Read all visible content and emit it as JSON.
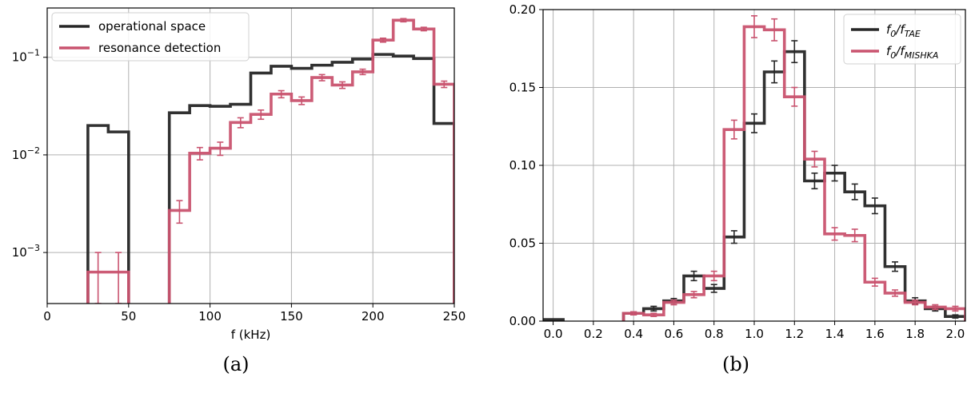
{
  "colors": {
    "black_series": "#262626",
    "pink_series": "#c9536f",
    "grid": "#b0b0b0"
  },
  "chart_data": [
    {
      "type": "histogram",
      "panel_label": "(a)",
      "xlabel": "f (kHz)",
      "ylabel": "",
      "xlim": [
        0,
        250
      ],
      "ylim": [
        0.0003,
        0.32
      ],
      "yscale": "log",
      "xticks": [
        0,
        50,
        100,
        150,
        200,
        250
      ],
      "yticks": [
        0.001,
        0.01,
        0.1
      ],
      "ytick_labels": [
        {
          "base": "10",
          "exp": "−3"
        },
        {
          "base": "10",
          "exp": "−2"
        },
        {
          "base": "10",
          "exp": "−1"
        }
      ],
      "grid": true,
      "legend_position": "top-left",
      "bin_edges": [
        0,
        12.5,
        25,
        37.5,
        50,
        62.5,
        75,
        87.5,
        100,
        112.5,
        125,
        137.5,
        150,
        162.5,
        175,
        187.5,
        200,
        212.5,
        225,
        237.5,
        250
      ],
      "series": [
        {
          "name": "operational space",
          "color": "#262626",
          "values": [
            0,
            0,
            0.02,
            0.0172,
            0,
            0,
            0.027,
            0.032,
            0.0315,
            0.033,
            0.069,
            0.081,
            0.077,
            0.083,
            0.089,
            0.096,
            0.107,
            0.103,
            0.097,
            0.021
          ],
          "errors": [
            0,
            0,
            0,
            0,
            0,
            0,
            0,
            0,
            0,
            0,
            0,
            0,
            0,
            0,
            0,
            0,
            0,
            0,
            0,
            0
          ]
        },
        {
          "name": "resonance detection",
          "color": "#c9536f",
          "values": [
            0,
            0,
            0.00063,
            0.00063,
            0,
            0,
            0.0027,
            0.0104,
            0.0117,
            0.0215,
            0.026,
            0.042,
            0.036,
            0.062,
            0.052,
            0.071,
            0.15,
            0.24,
            0.195,
            0.053
          ],
          "errors": [
            0,
            0,
            0.00037,
            0.00037,
            0,
            0,
            0.0007,
            0.0015,
            0.0018,
            0.0025,
            0.0028,
            0.0035,
            0.0032,
            0.0045,
            0.004,
            0.0045,
            0.007,
            0.009,
            0.008,
            0.004
          ]
        }
      ]
    },
    {
      "type": "histogram",
      "panel_label": "(b)",
      "xlabel": "",
      "ylabel": "",
      "xlim": [
        -0.05,
        2.05
      ],
      "ylim": [
        0,
        0.2
      ],
      "yscale": "linear",
      "xticks": [
        0.0,
        0.2,
        0.4,
        0.6,
        0.8,
        1.0,
        1.2,
        1.4,
        1.6,
        1.8,
        2.0
      ],
      "xtick_labels": [
        "0.0",
        "0.2",
        "0.4",
        "0.6",
        "0.8",
        "1.0",
        "1.2",
        "1.4",
        "1.6",
        "1.8",
        "2.0"
      ],
      "yticks": [
        0,
        0.05,
        0.1,
        0.15,
        0.2
      ],
      "ytick_labels": [
        "0.00",
        "0.05",
        "0.10",
        "0.15",
        "0.20"
      ],
      "grid": true,
      "legend_position": "top-right",
      "bin_edges": [
        -0.05,
        0.05,
        0.15,
        0.25,
        0.35,
        0.45,
        0.55,
        0.65,
        0.75,
        0.85,
        0.95,
        1.05,
        1.15,
        1.25,
        1.35,
        1.45,
        1.55,
        1.65,
        1.75,
        1.85,
        1.95,
        2.05
      ],
      "series": [
        {
          "name": {
            "base": "f",
            "sub0": "0",
            "slash": "/",
            "base2": "f",
            "sub": "TAE"
          },
          "color": "#262626",
          "values": [
            0.001,
            0,
            0,
            0,
            0.005,
            0.008,
            0.013,
            0.029,
            0.021,
            0.054,
            0.127,
            0.16,
            0.173,
            0.09,
            0.095,
            0.083,
            0.074,
            0.035,
            0.013,
            0.008,
            0.003
          ],
          "errors": [
            0,
            0,
            0,
            0,
            0.001,
            0.0015,
            0.0015,
            0.003,
            0.0025,
            0.004,
            0.006,
            0.007,
            0.007,
            0.005,
            0.005,
            0.005,
            0.005,
            0.003,
            0.002,
            0.0015,
            0.001
          ]
        },
        {
          "name": {
            "base": "f",
            "sub0": "0",
            "slash": "/",
            "base2": "f",
            "sub": "MISHKA"
          },
          "color": "#c9536f",
          "values": [
            0,
            0,
            0,
            0,
            0.005,
            0.004,
            0.012,
            0.017,
            0.029,
            0.123,
            0.189,
            0.187,
            0.144,
            0.104,
            0.056,
            0.055,
            0.025,
            0.018,
            0.012,
            0.009,
            0.008
          ],
          "errors": [
            0,
            0,
            0,
            0,
            0.001,
            0.001,
            0.0015,
            0.002,
            0.003,
            0.006,
            0.007,
            0.007,
            0.006,
            0.005,
            0.004,
            0.004,
            0.0025,
            0.002,
            0.0015,
            0.0015,
            0.0015
          ]
        }
      ]
    }
  ]
}
